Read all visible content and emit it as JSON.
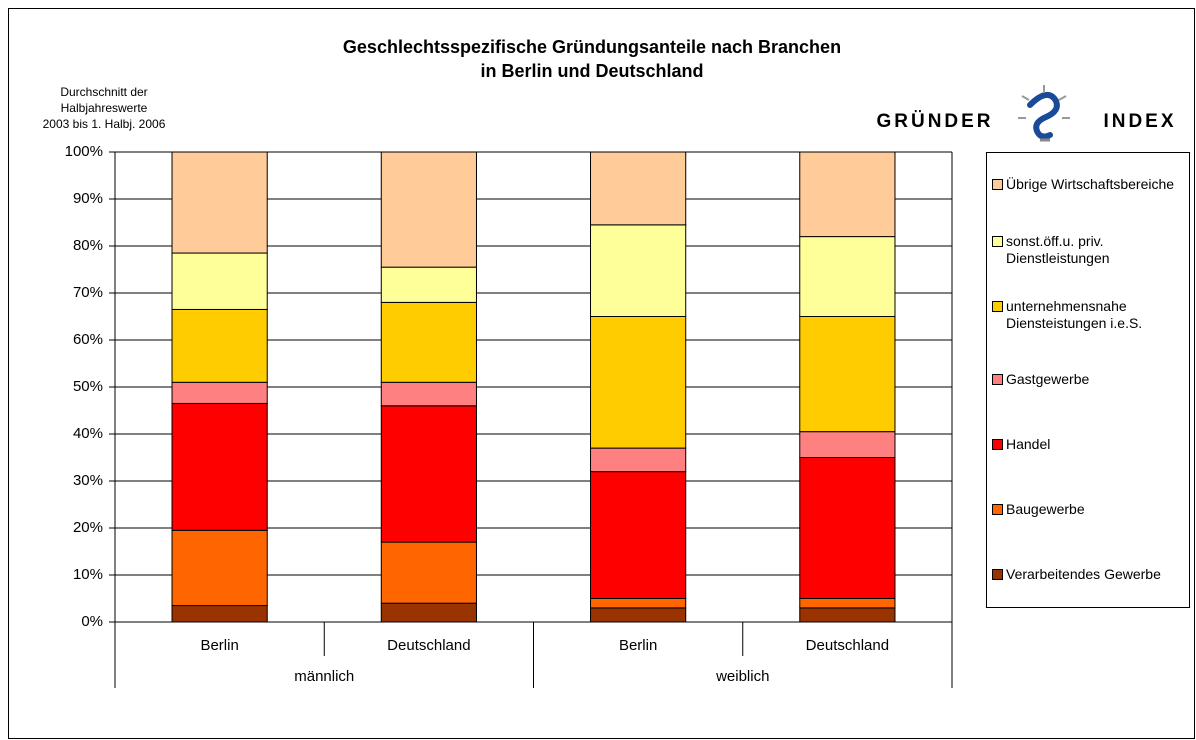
{
  "chart_data": {
    "type": "stacked_bar",
    "title": [
      "Geschlechtsspezifische Gründungsanteile nach Branchen",
      "in Berlin und Deutschland"
    ],
    "note": [
      "Durchschnitt der",
      "Halbjahreswerte",
      "2003 bis 1. Halbj. 2006"
    ],
    "logo": [
      "GRÜNDER",
      "INDEX"
    ],
    "categories": [
      "Berlin",
      "Deutschland",
      "Berlin",
      "Deutschland"
    ],
    "groups": [
      "männlich",
      "weiblich"
    ],
    "ylim": [
      0,
      100
    ],
    "yticks": [
      {
        "value": 0,
        "label": "0%"
      },
      {
        "value": 10,
        "label": "10%"
      },
      {
        "value": 20,
        "label": "20%"
      },
      {
        "value": 30,
        "label": "30%"
      },
      {
        "value": 40,
        "label": "40%"
      },
      {
        "value": 50,
        "label": "50%"
      },
      {
        "value": 60,
        "label": "60%"
      },
      {
        "value": 70,
        "label": "70%"
      },
      {
        "value": 80,
        "label": "80%"
      },
      {
        "value": 90,
        "label": "90%"
      },
      {
        "value": 100,
        "label": "100%"
      }
    ],
    "grid": true,
    "legend": "right",
    "series": [
      {
        "name": "Verarbeitendes Gewerbe",
        "color": "#993300",
        "values": [
          3.5,
          4,
          3,
          3
        ]
      },
      {
        "name": "Baugewerbe",
        "color": "#ff6600",
        "values": [
          16,
          13,
          2,
          2
        ]
      },
      {
        "name": "Handel",
        "color": "#ff0000",
        "values": [
          27,
          29,
          27,
          30
        ]
      },
      {
        "name": "Gastgewerbe",
        "color": "#ff8080",
        "values": [
          4.5,
          5,
          5,
          5.5
        ]
      },
      {
        "name": "unternehmensnahe Diensteistungen i.e.S.",
        "color": "#ffcc00",
        "values": [
          15.5,
          17,
          28,
          24.5
        ]
      },
      {
        "name": "sonst.öff.u. priv. Dienstleistungen",
        "color": "#ffff99",
        "values": [
          12,
          7.5,
          19.5,
          17
        ]
      },
      {
        "name": "Übrige Wirtschaftsbereiche",
        "color": "#ffcc99",
        "values": [
          21.5,
          24.5,
          15.5,
          18
        ]
      }
    ]
  }
}
